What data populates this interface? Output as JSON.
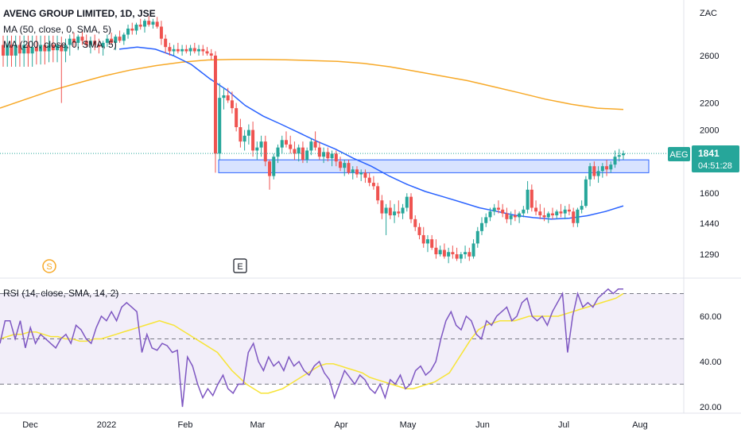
{
  "header": {
    "symbol_line": "AVENG GROUP LIMITED, 1D, JSE",
    "ma50_label": "MA (50, close, 0, SMA, 5)",
    "ma200_label": "MA (200, close, 0, SMA, 5)",
    "rsi_label": "RSI (14, close, SMA, 14, 2)",
    "currency": "ZAC"
  },
  "price_tag": {
    "ticker": "AEG",
    "price": "1841",
    "countdown": "04:51:28"
  },
  "markers": {
    "dividend": "S",
    "earnings": "E"
  },
  "colors": {
    "up": "#26a69a",
    "down": "#ef5350",
    "ma50": "#2962ff",
    "ma200": "#f7a928",
    "rsi": "#7e57c2",
    "rsi_ma": "#f7e437",
    "rsi_band": "#7e57c2",
    "zone": "#2962ff",
    "price_line": "#26a69a"
  },
  "chart_data": [
    {
      "type": "line",
      "title": "AVENG GROUP LIMITED, 1D, JSE",
      "ylabel": "ZAC",
      "y_scale": "log",
      "y_ticks": [
        1290,
        1440,
        1600,
        2000,
        2200,
        2600
      ],
      "x_ticks": [
        "Dec",
        "2022",
        "Feb",
        "Mar",
        "Apr",
        "May",
        "Jun",
        "Jul",
        "Aug"
      ],
      "last_price": 1841,
      "support_zone": [
        1720,
        1800
      ],
      "candles": [
        [
          2700,
          2790,
          2500,
          2600
        ],
        [
          2600,
          2790,
          2500,
          2700
        ],
        [
          2700,
          2790,
          2500,
          2600
        ],
        [
          2600,
          2790,
          2500,
          2700
        ],
        [
          2700,
          2790,
          2500,
          2620
        ],
        [
          2620,
          2790,
          2500,
          2700
        ],
        [
          2700,
          2790,
          2500,
          2620
        ],
        [
          2620,
          2790,
          2500,
          2680
        ],
        [
          2680,
          2790,
          2520,
          2640
        ],
        [
          2640,
          2790,
          2520,
          2700
        ],
        [
          2700,
          2790,
          2520,
          2640
        ],
        [
          2640,
          2790,
          2540,
          2700
        ],
        [
          2700,
          2790,
          2540,
          2650
        ],
        [
          2650,
          2790,
          2540,
          2700
        ],
        [
          2700,
          2780,
          2200,
          2640
        ],
        [
          2640,
          2760,
          2540,
          2700
        ],
        [
          2700,
          2800,
          2600,
          2760
        ],
        [
          2760,
          2820,
          2680,
          2720
        ],
        [
          2720,
          2800,
          2650,
          2780
        ],
        [
          2780,
          2840,
          2700,
          2740
        ],
        [
          2740,
          2800,
          2680,
          2700
        ],
        [
          2700,
          2780,
          2620,
          2740
        ],
        [
          2740,
          2800,
          2650,
          2700
        ],
        [
          2700,
          2760,
          2620,
          2680
        ],
        [
          2680,
          2740,
          2600,
          2720
        ],
        [
          2720,
          2800,
          2680,
          2760
        ],
        [
          2760,
          2820,
          2700,
          2720
        ],
        [
          2720,
          2800,
          2650,
          2780
        ],
        [
          2780,
          2840,
          2720,
          2740
        ],
        [
          2740,
          2820,
          2700,
          2800
        ],
        [
          2800,
          2900,
          2760,
          2860
        ],
        [
          2860,
          2920,
          2800,
          2840
        ],
        [
          2840,
          2920,
          2800,
          2900
        ],
        [
          2900,
          2960,
          2850,
          2880
        ],
        [
          2880,
          2960,
          2820,
          2940
        ],
        [
          2940,
          2990,
          2880,
          2900
        ],
        [
          2900,
          2960,
          2860,
          2930
        ],
        [
          2930,
          2980,
          2860,
          2880
        ],
        [
          2880,
          2940,
          2700,
          2760
        ],
        [
          2760,
          2800,
          2620,
          2680
        ],
        [
          2680,
          2720,
          2600,
          2640
        ],
        [
          2640,
          2700,
          2600,
          2660
        ],
        [
          2660,
          2720,
          2620,
          2640
        ],
        [
          2640,
          2700,
          2600,
          2660
        ],
        [
          2660,
          2700,
          2620,
          2640
        ],
        [
          2640,
          2700,
          2600,
          2670
        ],
        [
          2670,
          2720,
          2620,
          2640
        ],
        [
          2640,
          2700,
          2600,
          2660
        ],
        [
          2660,
          2700,
          2600,
          2640
        ],
        [
          2640,
          2680,
          2600,
          2620
        ],
        [
          2620,
          2660,
          2560,
          2600
        ],
        [
          2600,
          2640,
          1720,
          1840
        ],
        [
          1840,
          2360,
          1800,
          2240
        ],
        [
          2240,
          2320,
          2150,
          2260
        ],
        [
          2260,
          2320,
          2200,
          2220
        ],
        [
          2220,
          2290,
          2120,
          2160
        ],
        [
          2160,
          2200,
          1990,
          2020
        ],
        [
          2020,
          2080,
          1880,
          1920
        ],
        [
          1920,
          2000,
          1860,
          1960
        ],
        [
          1960,
          2040,
          1900,
          2000
        ],
        [
          2000,
          2060,
          1820,
          1860
        ],
        [
          1860,
          1920,
          1800,
          1880
        ],
        [
          1880,
          1960,
          1820,
          1920
        ],
        [
          1920,
          1960,
          1760,
          1790
        ],
        [
          1790,
          1800,
          1620,
          1700
        ],
        [
          1700,
          1840,
          1680,
          1820
        ],
        [
          1820,
          1900,
          1780,
          1880
        ],
        [
          1880,
          1960,
          1840,
          1930
        ],
        [
          1930,
          1990,
          1880,
          1900
        ],
        [
          1900,
          1960,
          1840,
          1870
        ],
        [
          1870,
          1920,
          1800,
          1840
        ],
        [
          1840,
          1900,
          1790,
          1880
        ],
        [
          1880,
          1920,
          1780,
          1800
        ],
        [
          1800,
          1880,
          1780,
          1860
        ],
        [
          1860,
          1940,
          1830,
          1920
        ],
        [
          1920,
          1990,
          1860,
          1880
        ],
        [
          1880,
          1920,
          1800,
          1820
        ],
        [
          1820,
          1880,
          1780,
          1850
        ],
        [
          1850,
          1880,
          1790,
          1810
        ],
        [
          1810,
          1860,
          1760,
          1840
        ],
        [
          1840,
          1860,
          1760,
          1790
        ],
        [
          1790,
          1820,
          1730,
          1750
        ],
        [
          1750,
          1800,
          1700,
          1780
        ],
        [
          1780,
          1800,
          1710,
          1720
        ],
        [
          1720,
          1760,
          1680,
          1740
        ],
        [
          1740,
          1760,
          1690,
          1710
        ],
        [
          1710,
          1740,
          1670,
          1720
        ],
        [
          1720,
          1740,
          1660,
          1690
        ],
        [
          1690,
          1720,
          1640,
          1660
        ],
        [
          1660,
          1700,
          1620,
          1640
        ],
        [
          1640,
          1660,
          1540,
          1560
        ],
        [
          1560,
          1590,
          1460,
          1490
        ],
        [
          1490,
          1540,
          1380,
          1520
        ],
        [
          1520,
          1560,
          1460,
          1480
        ],
        [
          1480,
          1540,
          1440,
          1500
        ],
        [
          1500,
          1560,
          1470,
          1490
        ],
        [
          1490,
          1540,
          1460,
          1520
        ],
        [
          1520,
          1600,
          1500,
          1580
        ],
        [
          1580,
          1600,
          1440,
          1460
        ],
        [
          1460,
          1480,
          1400,
          1420
        ],
        [
          1420,
          1440,
          1360,
          1380
        ],
        [
          1380,
          1420,
          1320,
          1340
        ],
        [
          1340,
          1380,
          1300,
          1360
        ],
        [
          1360,
          1380,
          1310,
          1320
        ],
        [
          1320,
          1360,
          1270,
          1290
        ],
        [
          1290,
          1330,
          1280,
          1310
        ],
        [
          1310,
          1340,
          1270,
          1280
        ],
        [
          1280,
          1320,
          1250,
          1300
        ],
        [
          1300,
          1330,
          1270,
          1290
        ],
        [
          1290,
          1320,
          1260,
          1270
        ],
        [
          1270,
          1300,
          1250,
          1290
        ],
        [
          1290,
          1330,
          1270,
          1300
        ],
        [
          1300,
          1320,
          1260,
          1280
        ],
        [
          1280,
          1360,
          1270,
          1340
        ],
        [
          1340,
          1420,
          1320,
          1400
        ],
        [
          1400,
          1470,
          1380,
          1440
        ],
        [
          1440,
          1490,
          1420,
          1470
        ],
        [
          1470,
          1520,
          1450,
          1500
        ],
        [
          1500,
          1540,
          1480,
          1520
        ],
        [
          1520,
          1560,
          1490,
          1510
        ],
        [
          1510,
          1540,
          1470,
          1490
        ],
        [
          1490,
          1520,
          1440,
          1460
        ],
        [
          1460,
          1500,
          1430,
          1480
        ],
        [
          1480,
          1510,
          1450,
          1470
        ],
        [
          1470,
          1500,
          1440,
          1490
        ],
        [
          1490,
          1530,
          1470,
          1510
        ],
        [
          1510,
          1670,
          1490,
          1620
        ],
        [
          1620,
          1650,
          1500,
          1520
        ],
        [
          1520,
          1560,
          1480,
          1500
        ],
        [
          1500,
          1540,
          1460,
          1480
        ],
        [
          1480,
          1520,
          1450,
          1470
        ],
        [
          1470,
          1500,
          1440,
          1490
        ],
        [
          1490,
          1520,
          1460,
          1480
        ],
        [
          1480,
          1510,
          1460,
          1500
        ],
        [
          1500,
          1540,
          1470,
          1490
        ],
        [
          1490,
          1530,
          1460,
          1510
        ],
        [
          1510,
          1540,
          1480,
          1500
        ],
        [
          1500,
          1520,
          1420,
          1440
        ],
        [
          1440,
          1520,
          1420,
          1510
        ],
        [
          1510,
          1560,
          1490,
          1530
        ],
        [
          1530,
          1700,
          1520,
          1680
        ],
        [
          1680,
          1780,
          1640,
          1760
        ],
        [
          1760,
          1790,
          1680,
          1700
        ],
        [
          1700,
          1760,
          1660,
          1730
        ],
        [
          1730,
          1780,
          1690,
          1760
        ],
        [
          1760,
          1800,
          1700,
          1740
        ],
        [
          1740,
          1790,
          1720,
          1770
        ],
        [
          1770,
          1860,
          1750,
          1820
        ],
        [
          1820,
          1870,
          1790,
          1830
        ],
        [
          1830,
          1860,
          1800,
          1841
        ]
      ],
      "ma50": [
        2660,
        2680,
        2660,
        2600,
        2520,
        2400,
        2300,
        2180,
        2100,
        2040,
        1980,
        1920,
        1870,
        1810,
        1760,
        1700,
        1650,
        1610,
        1580,
        1550,
        1520,
        1500,
        1480,
        1468,
        1460,
        1465,
        1478,
        1500,
        1530
      ],
      "ma200": [
        2160,
        2230,
        2300,
        2360,
        2420,
        2470,
        2510,
        2540,
        2560,
        2565,
        2565,
        2562,
        2555,
        2548,
        2530,
        2500,
        2460,
        2420,
        2380,
        2330,
        2280,
        2230,
        2190,
        2160,
        2150
      ]
    },
    {
      "type": "line",
      "title": "RSI (14, close, SMA, 14, 2)",
      "y_ticks": [
        20,
        40,
        60
      ],
      "bands": [
        30,
        50,
        70
      ],
      "y_range": [
        18,
        72
      ],
      "rsi": [
        48,
        58,
        58,
        50,
        58,
        46,
        55,
        48,
        52,
        50,
        48,
        46,
        50,
        52,
        48,
        56,
        54,
        50,
        48,
        55,
        60,
        58,
        62,
        58,
        64,
        66,
        64,
        62,
        44,
        52,
        46,
        45,
        48,
        47,
        44,
        45,
        20,
        42,
        38,
        30,
        24,
        28,
        25,
        30,
        34,
        28,
        26,
        30,
        30,
        44,
        48,
        40,
        36,
        42,
        38,
        40,
        36,
        42,
        38,
        40,
        36,
        34,
        38,
        40,
        35,
        32,
        24,
        30,
        36,
        33,
        30,
        34,
        32,
        28,
        26,
        30,
        24,
        32,
        30,
        34,
        28,
        30,
        36,
        38,
        34,
        36,
        40,
        50,
        58,
        62,
        56,
        54,
        60,
        58,
        52,
        50,
        58,
        56,
        60,
        62,
        64,
        58,
        60,
        66,
        68,
        60,
        58,
        60,
        56,
        62,
        66,
        70,
        44,
        60,
        70,
        64,
        66,
        64,
        68,
        70,
        72,
        70,
        72,
        72
      ],
      "rsi_ma": [
        50,
        51,
        52,
        52,
        53,
        53,
        52,
        51,
        51,
        50,
        50,
        49,
        49,
        50,
        50,
        51,
        52,
        53,
        54,
        55,
        56,
        57,
        58,
        57,
        56,
        54,
        52,
        50,
        48,
        46,
        44,
        40,
        36,
        33,
        30,
        28,
        26,
        26,
        27,
        28,
        30,
        32,
        34,
        36,
        38,
        39,
        39,
        38,
        37,
        36,
        35,
        33,
        32,
        31,
        30,
        29,
        28,
        28,
        29,
        30,
        31,
        33,
        35,
        40,
        45,
        50,
        54,
        56,
        57,
        58,
        58,
        58,
        59,
        60,
        60,
        60,
        60,
        60,
        61,
        62,
        63,
        64,
        65,
        66,
        67,
        68,
        70
      ]
    }
  ]
}
